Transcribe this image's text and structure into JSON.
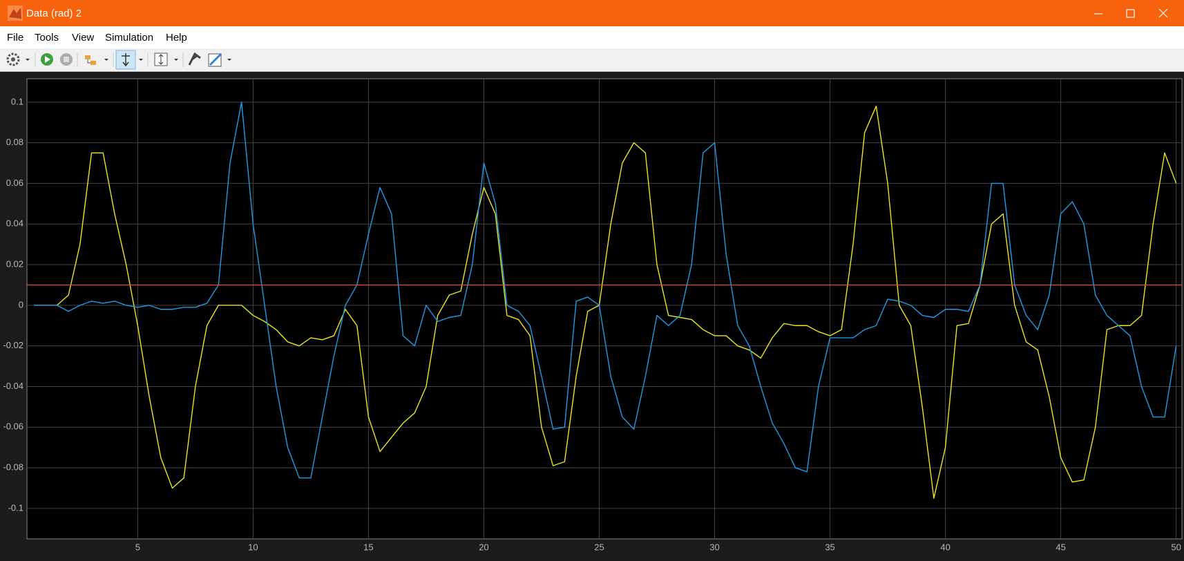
{
  "window": {
    "title": "Data (rad) 2",
    "menu": [
      "File",
      "Tools",
      "View",
      "Simulation",
      "Help"
    ]
  },
  "chart_data": {
    "type": "line",
    "x": [
      0.5,
      1,
      1.5,
      2,
      2.5,
      3,
      3.5,
      4,
      4.5,
      5,
      5.5,
      6,
      6.5,
      7,
      7.5,
      8,
      8.5,
      9,
      9.5,
      10,
      10.5,
      11,
      11.5,
      12,
      12.5,
      13,
      13.5,
      14,
      14.5,
      15,
      15.5,
      16,
      16.5,
      17,
      17.5,
      18,
      18.5,
      19,
      19.5,
      20,
      20.5,
      21,
      21.5,
      22,
      22.5,
      23,
      23.5,
      24,
      24.5,
      25,
      25.5,
      26,
      26.5,
      27,
      27.5,
      28,
      28.5,
      29,
      29.5,
      30,
      30.5,
      31,
      31.5,
      32,
      32.5,
      33,
      33.5,
      34,
      34.5,
      35,
      35.5,
      36,
      36.5,
      37,
      37.5,
      38,
      38.5,
      39,
      39.5,
      40,
      40.5,
      41,
      41.5,
      42,
      42.5,
      43,
      43.5,
      44,
      44.5,
      45,
      45.5,
      46,
      46.5,
      47,
      47.5,
      48,
      48.5,
      49,
      49.5,
      50
    ],
    "series": [
      {
        "color": "#f0e61e",
        "values": [
          0,
          0,
          0,
          0.005,
          0.03,
          0.075,
          0.075,
          0.045,
          0.02,
          -0.01,
          -0.045,
          -0.075,
          -0.09,
          -0.085,
          -0.04,
          -0.01,
          0,
          0,
          0,
          -0.005,
          -0.008,
          -0.012,
          -0.018,
          -0.02,
          -0.016,
          -0.017,
          -0.015,
          -0.002,
          -0.01,
          -0.055,
          -0.072,
          -0.065,
          -0.058,
          -0.053,
          -0.04,
          -0.005,
          0.005,
          0.007,
          0.035,
          0.058,
          0.045,
          -0.005,
          -0.007,
          -0.015,
          -0.06,
          -0.079,
          -0.077,
          -0.035,
          -0.003,
          0,
          0.04,
          0.07,
          0.08,
          0.075,
          0.02,
          -0.005,
          -0.006,
          -0.007,
          -0.012,
          -0.015,
          -0.015,
          -0.02,
          -0.022,
          -0.026,
          -0.016,
          -0.009,
          -0.01,
          -0.01,
          -0.013,
          -0.015,
          -0.012,
          0.03,
          0.085,
          0.098,
          0.06,
          0,
          -0.01,
          -0.05,
          -0.095,
          -0.07,
          -0.01,
          -0.009,
          0.01,
          0.04,
          0.045,
          0,
          -0.018,
          -0.022,
          -0.045,
          -0.075,
          -0.087,
          -0.086,
          -0.06,
          -0.012,
          -0.01,
          -0.01,
          -0.005,
          0.04,
          0.075,
          0.06
        ]
      },
      {
        "color": "#1e9bea",
        "values": [
          0,
          0,
          0,
          -0.003,
          0,
          0.002,
          0.001,
          0.002,
          0,
          -0.001,
          0,
          -0.002,
          -0.002,
          -0.001,
          -0.001,
          0.001,
          0.01,
          0.07,
          0.1,
          0.04,
          0,
          -0.04,
          -0.07,
          -0.085,
          -0.085,
          -0.055,
          -0.025,
          0,
          0.01,
          0.035,
          0.058,
          0.045,
          -0.015,
          -0.02,
          0,
          -0.008,
          -0.006,
          -0.005,
          0.02,
          0.07,
          0.05,
          0,
          -0.003,
          -0.01,
          -0.035,
          -0.061,
          -0.06,
          0.002,
          0.004,
          0,
          -0.035,
          -0.055,
          -0.061,
          -0.035,
          -0.005,
          -0.01,
          -0.005,
          0.02,
          0.075,
          0.08,
          0.025,
          -0.01,
          -0.02,
          -0.04,
          -0.058,
          -0.068,
          -0.08,
          -0.082,
          -0.04,
          -0.016,
          -0.016,
          -0.016,
          -0.012,
          -0.01,
          0.003,
          0.002,
          0,
          -0.005,
          -0.006,
          -0.002,
          -0.002,
          -0.003,
          0.01,
          0.06,
          0.06,
          0.01,
          -0.005,
          -0.012,
          0.005,
          0.045,
          0.051,
          0.04,
          0.005,
          -0.005,
          -0.01,
          -0.015,
          -0.04,
          -0.055,
          -0.055,
          -0.02
        ]
      }
    ],
    "reference_lines": [
      {
        "value": 0.01,
        "color": "#ff4b2b"
      }
    ],
    "xlim": [
      0.2,
      50.25
    ],
    "xticks": [
      5,
      10,
      15,
      20,
      25,
      30,
      35,
      40,
      45,
      50
    ],
    "ylim": [
      -0.115,
      0.1115
    ],
    "yticks": [
      -0.1,
      -0.08,
      -0.06,
      -0.04,
      -0.02,
      0,
      0.02,
      0.04,
      0.06,
      0.08,
      0.1
    ],
    "grid": true
  }
}
